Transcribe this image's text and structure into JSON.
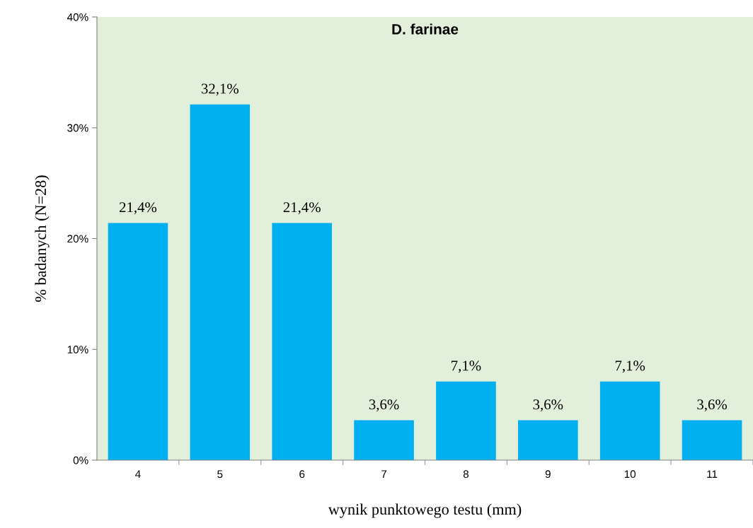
{
  "chart_data": {
    "type": "bar",
    "title": "D. farinae",
    "xlabel": "wynik punktowego testu (mm)",
    "ylabel": "% badanych (N=28)",
    "categories": [
      "4",
      "5",
      "6",
      "7",
      "8",
      "9",
      "10",
      "11"
    ],
    "values": [
      21.4,
      32.1,
      21.4,
      3.6,
      7.1,
      3.6,
      7.1,
      3.6
    ],
    "value_labels": [
      "21,4%",
      "32,1%",
      "21,4%",
      "3,6%",
      "7,1%",
      "3,6%",
      "7,1%",
      "3,6%"
    ],
    "color": "#00b0f0",
    "ylim": [
      0,
      40
    ],
    "yticks": [
      {
        "value": 0,
        "label": "0%"
      },
      {
        "value": 10,
        "label": "10%"
      },
      {
        "value": 20,
        "label": "20%"
      },
      {
        "value": 30,
        "label": "30%"
      },
      {
        "value": 40,
        "label": "40%"
      }
    ],
    "grid": false,
    "legend": false
  }
}
